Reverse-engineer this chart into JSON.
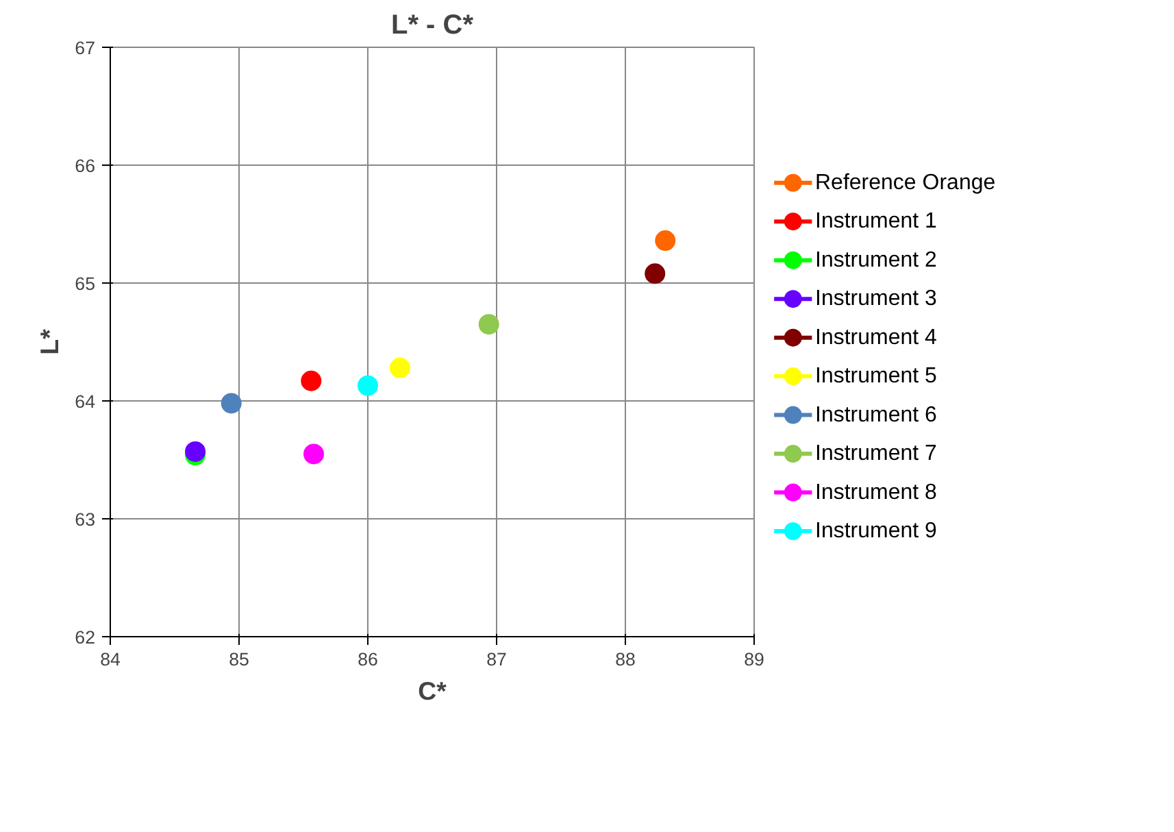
{
  "chart_data": {
    "type": "scatter",
    "title": "L* - C*",
    "xlabel": "C*",
    "ylabel": "L*",
    "xlim": [
      84,
      89
    ],
    "xticks": [
      84,
      85,
      86,
      87,
      88,
      89
    ],
    "ylim": [
      62,
      67
    ],
    "yticks": [
      62,
      63,
      64,
      65,
      66,
      67
    ],
    "grid": true,
    "legend": "right",
    "marker": "circle",
    "series": [
      {
        "name": "Reference Orange",
        "color": "#ff6600",
        "x": [
          88.31
        ],
        "values": [
          65.36
        ]
      },
      {
        "name": "Instrument 1",
        "color": "#ff0000",
        "x": [
          85.56
        ],
        "values": [
          64.17
        ]
      },
      {
        "name": "Instrument 2",
        "color": "#00ff00",
        "x": [
          84.66
        ],
        "values": [
          63.54
        ]
      },
      {
        "name": "Instrument 3",
        "color": "#6600ff",
        "x": [
          84.66
        ],
        "values": [
          63.57
        ]
      },
      {
        "name": "Instrument 4",
        "color": "#800000",
        "x": [
          88.23
        ],
        "values": [
          65.08
        ]
      },
      {
        "name": "Instrument 5",
        "color": "#ffff00",
        "x": [
          86.25
        ],
        "values": [
          64.28
        ]
      },
      {
        "name": "Instrument 6",
        "color": "#4f81bd",
        "x": [
          84.94
        ],
        "values": [
          63.98
        ]
      },
      {
        "name": "Instrument 7",
        "color": "#8fc94f",
        "x": [
          86.94
        ],
        "values": [
          64.65
        ]
      },
      {
        "name": "Instrument 8",
        "color": "#ff00ff",
        "x": [
          85.58
        ],
        "values": [
          63.55
        ]
      },
      {
        "name": "Instrument 9",
        "color": "#00ffff",
        "x": [
          86.0
        ],
        "values": [
          64.13
        ]
      }
    ]
  }
}
